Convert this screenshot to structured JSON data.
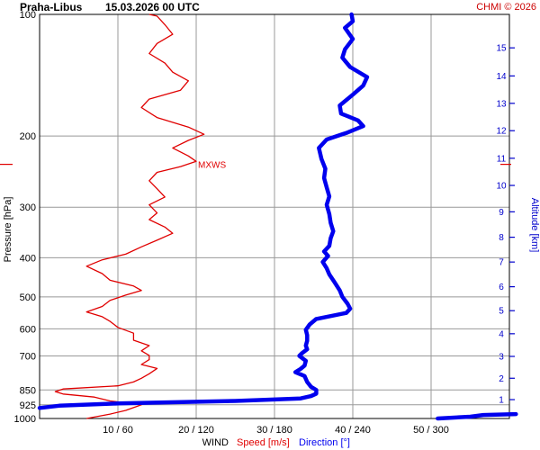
{
  "header": {
    "station": "Praha-Libus",
    "datetime": "15.03.2026 00 UTC",
    "credit": "CHMI © 2026"
  },
  "colors": {
    "speed": "#e00000",
    "direction": "#0000ee",
    "grid": "#999999",
    "altitude": "#0000cc"
  },
  "chart_data": {
    "type": "line",
    "ylabel": "Pressure [hPa]",
    "y2label": "Altitude [km]",
    "xlabel_parts": {
      "main": "WIND",
      "speed": "Speed [m/s]",
      "direction": "Direction [°]"
    },
    "pressure_ticks": [
      "100",
      "200",
      "300",
      "400",
      "500",
      "600",
      "700",
      "850",
      "925",
      "1000"
    ],
    "pressure_tick_values": [
      100,
      200,
      300,
      400,
      500,
      600,
      700,
      850,
      925,
      1000
    ],
    "altitude_ticks": [
      "1",
      "2",
      "3",
      "4",
      "5",
      "6",
      "7",
      "8",
      "9",
      "10",
      "11",
      "12",
      "13",
      "14",
      "15"
    ],
    "altitude_tick_pressures": [
      898,
      795,
      702,
      617,
      541,
      472,
      410,
      356,
      308,
      265,
      227,
      194,
      166,
      142,
      121
    ],
    "x_tick_labels": [
      "10 / 60",
      "20 / 120",
      "30 / 180",
      "40 / 240",
      "50 / 300"
    ],
    "x_tick_speeds": [
      10,
      20,
      30,
      40,
      50
    ],
    "speed_range": [
      0,
      60
    ],
    "direction_range": [
      0,
      360
    ],
    "max_wind_label": "MXWS",
    "max_wind_pressure": 235,
    "speed_series": {
      "name": "Speed [m/s]",
      "points": [
        [
          1000,
          6
        ],
        [
          975,
          9
        ],
        [
          955,
          11
        ],
        [
          940,
          12
        ],
        [
          925,
          13
        ],
        [
          905,
          9
        ],
        [
          885,
          7
        ],
        [
          870,
          3
        ],
        [
          858,
          2
        ],
        [
          845,
          3
        ],
        [
          830,
          10
        ],
        [
          812,
          12
        ],
        [
          795,
          13
        ],
        [
          775,
          14
        ],
        [
          752,
          15
        ],
        [
          735,
          13
        ],
        [
          715,
          14
        ],
        [
          698,
          14
        ],
        [
          680,
          13
        ],
        [
          660,
          14
        ],
        [
          640,
          12
        ],
        [
          615,
          12
        ],
        [
          595,
          10
        ],
        [
          575,
          9
        ],
        [
          560,
          8
        ],
        [
          545,
          6
        ],
        [
          528,
          8
        ],
        [
          510,
          9
        ],
        [
          495,
          11
        ],
        [
          482,
          13
        ],
        [
          470,
          12
        ],
        [
          455,
          9
        ],
        [
          438,
          8
        ],
        [
          420,
          6
        ],
        [
          405,
          8
        ],
        [
          392,
          11
        ],
        [
          376,
          13
        ],
        [
          362,
          15
        ],
        [
          348,
          17
        ],
        [
          336,
          16
        ],
        [
          322,
          14
        ],
        [
          310,
          15
        ],
        [
          296,
          14
        ],
        [
          283,
          16
        ],
        [
          270,
          15
        ],
        [
          258,
          14
        ],
        [
          246,
          15
        ],
        [
          238,
          18
        ],
        [
          231,
          20
        ],
        [
          224,
          19
        ],
        [
          214,
          17
        ],
        [
          205,
          19
        ],
        [
          198,
          21
        ],
        [
          190,
          19
        ],
        [
          180,
          15
        ],
        [
          170,
          13
        ],
        [
          162,
          14
        ],
        [
          154,
          18
        ],
        [
          146,
          19
        ],
        [
          139,
          17
        ],
        [
          132,
          16
        ],
        [
          125,
          14
        ],
        [
          118,
          15
        ],
        [
          112,
          17
        ],
        [
          106,
          16
        ],
        [
          101,
          15
        ],
        [
          100,
          14
        ]
      ]
    },
    "direction_series": {
      "name": "Direction [°]",
      "points": [
        [
          942,
          0
        ],
        [
          930,
          15
        ],
        [
          918,
          60
        ],
        [
          905,
          150
        ],
        [
          892,
          200
        ],
        [
          880,
          208
        ],
        [
          868,
          212
        ],
        [
          850,
          212
        ],
        [
          835,
          208
        ],
        [
          812,
          205
        ],
        [
          785,
          203
        ],
        [
          768,
          196
        ],
        [
          754,
          200
        ],
        [
          740,
          203
        ],
        [
          720,
          204
        ],
        [
          700,
          199
        ],
        [
          690,
          201
        ],
        [
          674,
          205
        ],
        [
          660,
          204
        ],
        [
          642,
          205
        ],
        [
          622,
          205
        ],
        [
          603,
          204
        ],
        [
          585,
          207
        ],
        [
          567,
          212
        ],
        [
          548,
          235
        ],
        [
          535,
          238
        ],
        [
          520,
          236
        ],
        [
          500,
          232
        ],
        [
          482,
          230
        ],
        [
          460,
          226
        ],
        [
          440,
          222
        ],
        [
          425,
          220
        ],
        [
          410,
          217
        ],
        [
          396,
          221
        ],
        [
          386,
          218
        ],
        [
          374,
          222
        ],
        [
          358,
          223
        ],
        [
          344,
          225
        ],
        [
          328,
          223
        ],
        [
          312,
          222
        ],
        [
          296,
          220
        ],
        [
          282,
          222
        ],
        [
          268,
          220
        ],
        [
          254,
          218
        ],
        [
          241,
          219
        ],
        [
          228,
          216
        ],
        [
          214,
          214
        ],
        [
          204,
          220
        ],
        [
          196,
          236
        ],
        [
          189,
          248
        ],
        [
          183,
          244
        ],
        [
          176,
          231
        ],
        [
          168,
          230
        ],
        [
          158,
          240
        ],
        [
          150,
          248
        ],
        [
          143,
          251
        ],
        [
          135,
          238
        ],
        [
          128,
          232
        ],
        [
          122,
          234
        ],
        [
          115,
          240
        ],
        [
          108,
          234
        ],
        [
          104,
          240
        ],
        [
          100,
          239
        ]
      ]
    },
    "surface_direction_segment": {
      "name": "Direction [°]",
      "points": [
        [
          1000,
          305
        ],
        [
          990,
          330
        ],
        [
          980,
          340
        ],
        [
          975,
          365
        ]
      ]
    }
  }
}
